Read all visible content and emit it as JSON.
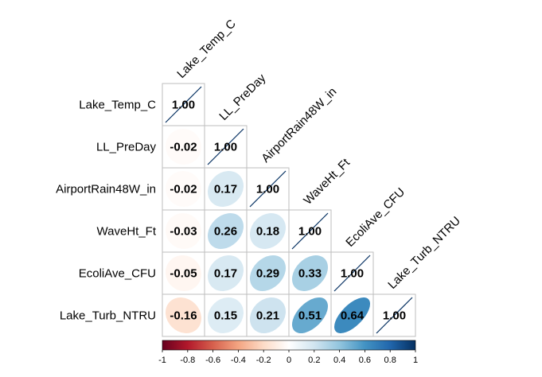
{
  "chart_data": {
    "type": "heatmap",
    "title": "",
    "variables": [
      "Lake_Temp_C",
      "LL_PreDay",
      "AirportRain48W_in",
      "WaveHt_Ft",
      "EcoliAve_CFU",
      "Lake_Turb_NTRU"
    ],
    "matrix": [
      [
        1.0,
        null,
        null,
        null,
        null,
        null
      ],
      [
        -0.02,
        1.0,
        null,
        null,
        null,
        null
      ],
      [
        -0.02,
        0.17,
        1.0,
        null,
        null,
        null
      ],
      [
        -0.03,
        0.26,
        0.18,
        1.0,
        null,
        null
      ],
      [
        -0.05,
        0.17,
        0.29,
        0.33,
        1.0,
        null
      ],
      [
        -0.16,
        0.15,
        0.21,
        0.51,
        0.64,
        1.0
      ]
    ],
    "labels": [
      [
        "1.00"
      ],
      [
        "-0.02",
        "1.00"
      ],
      [
        "-0.02",
        "0.17",
        "1.00"
      ],
      [
        "-0.03",
        "0.26",
        "0.18",
        "1.00"
      ],
      [
        "-0.05",
        "0.17",
        "0.29",
        "0.33",
        "1.00"
      ],
      [
        "-0.16",
        "0.15",
        "0.21",
        "0.51",
        "0.64",
        "1.00"
      ]
    ],
    "layout": "lower-triangle",
    "cell_shape": "ellipse",
    "diagonal_shape": "line",
    "colorbar": {
      "range": [
        -1,
        1
      ],
      "ticks": [
        "-1",
        "-0.8",
        "-0.6",
        "-0.4",
        "-0.2",
        "0",
        "0.2",
        "0.4",
        "0.6",
        "0.8",
        "1"
      ],
      "tick_values": [
        -1,
        -0.8,
        -0.6,
        -0.4,
        -0.2,
        0,
        0.2,
        0.4,
        0.6,
        0.8,
        1
      ],
      "placement": "bottom",
      "colors": [
        "#67001F",
        "#B2182B",
        "#D6604D",
        "#F4A582",
        "#FDDBC7",
        "#FFFFFF",
        "#D1E5F0",
        "#92C5DE",
        "#4393C3",
        "#2166AC",
        "#053061"
      ]
    },
    "grid_color": "#BEBEBE"
  }
}
